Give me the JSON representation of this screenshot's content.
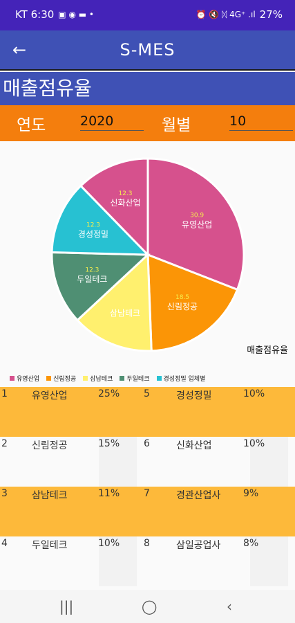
{
  "status_bar": {
    "carrier_time": "KT 6:30",
    "left_icons": "▣ ◉ ▬ •",
    "right_icons": "⏰ 🔇 ᛞ 4G⁺ .ıl",
    "battery": "27%"
  },
  "app_bar": {
    "back_icon": "back-arrow-icon",
    "title": "S-MES"
  },
  "page_title": "매출점유율",
  "filters": {
    "year_label": "연도",
    "year_value": "2020",
    "month_label": "월별",
    "month_value": "10"
  },
  "chart_data": {
    "type": "pie",
    "description": "매출점유율",
    "slices": [
      {
        "label": "유영산업",
        "value": 30.9,
        "color": "#d6518d"
      },
      {
        "label": "신림정공",
        "value": 18.5,
        "color": "#fb9506"
      },
      {
        "label": "삼남테크",
        "value": 13.7,
        "color": "#fff06e"
      },
      {
        "label": "두일테크",
        "value": 12.3,
        "color": "#4f8f73"
      },
      {
        "label": "경성정밀",
        "value": 12.3,
        "color": "#27c1d2"
      },
      {
        "label": "신화산업",
        "value": 12.3,
        "color": "#d6518d"
      }
    ],
    "data_labels": [
      "30.9",
      "18.5",
      "",
      "12.3",
      "12.3",
      "12.3"
    ],
    "legend": [
      {
        "label": "유영산업",
        "color": "#d6518d"
      },
      {
        "label": "신림정공",
        "color": "#fb9506"
      },
      {
        "label": "삼남테크",
        "color": "#fff06e"
      },
      {
        "label": "두일테크",
        "color": "#4f8f73"
      },
      {
        "label": "경성정밀 업체별",
        "color": "#27c1d2"
      }
    ]
  },
  "ranking": [
    {
      "rank1": "1",
      "name1": "유영산업",
      "pct1": "25%",
      "rank2": "5",
      "name2": "경성정밀",
      "pct2": "10%"
    },
    {
      "rank1": "2",
      "name1": "신림정공",
      "pct1": "15%",
      "rank2": "6",
      "name2": "신화산업",
      "pct2": "10%"
    },
    {
      "rank1": "3",
      "name1": "삼남테크",
      "pct1": "11%",
      "rank2": "7",
      "name2": "경관산업사",
      "pct2": "9%"
    },
    {
      "rank1": "4",
      "name1": "두일테크",
      "pct1": "10%",
      "rank2": "8",
      "name2": "삼일공업사",
      "pct2": "8%"
    }
  ],
  "nav_bar": {
    "recents": "|||",
    "home": "◯",
    "back": "‹"
  }
}
